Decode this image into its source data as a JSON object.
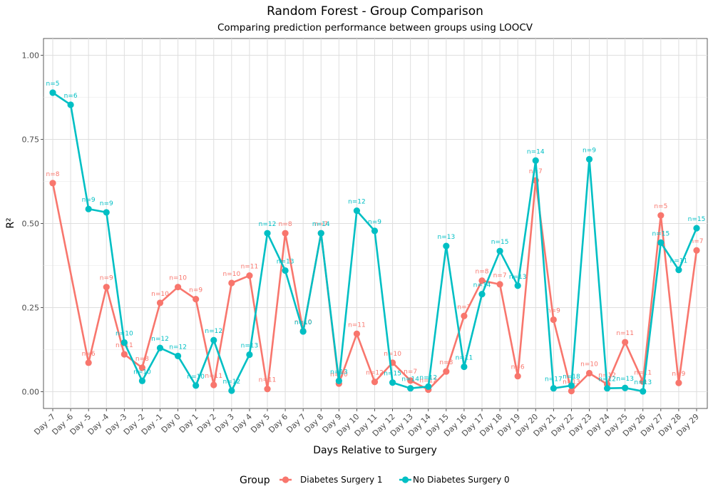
{
  "chart_data": {
    "type": "line",
    "title": "Random Forest - Group Comparison",
    "subtitle": "Comparing prediction performance between groups using LOOCV",
    "xlabel": "Days Relative to Surgery",
    "ylabel": "R²",
    "ylim": [
      -0.05,
      1.05
    ],
    "yticks": [
      "0.00",
      "0.25",
      "0.50",
      "0.75",
      "1.00"
    ],
    "ytick_values": [
      0,
      0.25,
      0.5,
      0.75,
      1.0
    ],
    "categories": [
      "Day -7",
      "Day -6",
      "Day -5",
      "Day -4",
      "Day -3",
      "Day -2",
      "Day -1",
      "Day 0",
      "Day 1",
      "Day 2",
      "Day 3",
      "Day 4",
      "Day 5",
      "Day 6",
      "Day 7",
      "Day 8",
      "Day 9",
      "Day 10",
      "Day 11",
      "Day 12",
      "Day 13",
      "Day 14",
      "Day 15",
      "Day 16",
      "Day 17",
      "Day 18",
      "Day 19",
      "Day 20",
      "Day 21",
      "Day 22",
      "Day 23",
      "Day 24",
      "Day 25",
      "Day 26",
      "Day 27",
      "Day 28",
      "Day 29"
    ],
    "grid": true,
    "legend": {
      "title": "Group",
      "position": "bottom"
    },
    "series": [
      {
        "name": "Diabetes Surgery 1",
        "color": "#F8766D",
        "values": [
          0.62,
          null,
          0.086,
          0.311,
          0.111,
          0.071,
          0.264,
          0.311,
          0.275,
          0.02,
          0.323,
          0.345,
          0.008,
          0.471,
          0.18,
          0.471,
          0.024,
          0.172,
          0.029,
          0.086,
          0.033,
          0.006,
          0.06,
          0.225,
          0.33,
          0.319,
          0.046,
          0.628,
          0.214,
          0.002,
          0.055,
          0.022,
          0.147,
          0.03,
          0.524,
          0.026,
          0.42
        ],
        "labels": [
          "n=8",
          "",
          "n=6",
          "n=9",
          "n=11",
          "n=8",
          "n=10",
          "n=10",
          "n=9",
          "n=11",
          "n=10",
          "n=11",
          "n=11",
          "n=8",
          "n=10",
          "n=7",
          "n=10",
          "n=11",
          "n=12",
          "n=10",
          "n=7",
          "n=12",
          "n=8",
          "n=7",
          "n=8",
          "n=7",
          "n=6",
          "n=7",
          "n=9",
          "n=13",
          "n=10",
          "n=12",
          "n=11",
          "n=11",
          "n=5",
          "n=9",
          "n=7"
        ]
      },
      {
        "name": "No Diabetes Surgery 0",
        "color": "#00BFC4",
        "values": [
          0.889,
          0.853,
          0.543,
          0.533,
          0.146,
          0.032,
          0.13,
          0.106,
          0.018,
          0.153,
          0.003,
          0.11,
          0.471,
          0.36,
          0.179,
          0.471,
          0.032,
          0.538,
          0.478,
          0.027,
          0.01,
          0.015,
          0.433,
          0.074,
          0.29,
          0.418,
          0.315,
          0.687,
          0.01,
          0.018,
          0.691,
          0.01,
          0.011,
          0.001,
          0.443,
          0.362,
          0.486
        ],
        "labels": [
          "n=5",
          "n=6",
          "n=9",
          "n=9",
          "n=10",
          "n=10",
          "n=12",
          "n=12",
          "n=10",
          "n=12",
          "n=12",
          "n=13",
          "n=12",
          "n=13",
          "n=10",
          "n=14",
          "n=13",
          "n=12",
          "n=9",
          "n=15",
          "n=14",
          "n=12",
          "n=13",
          "n=11",
          "n=14",
          "n=15",
          "n=13",
          "n=14",
          "n=17",
          "n=18",
          "n=9",
          "n=12",
          "n=13",
          "n=13",
          "n=15",
          "n=11",
          "n=15"
        ]
      }
    ]
  }
}
